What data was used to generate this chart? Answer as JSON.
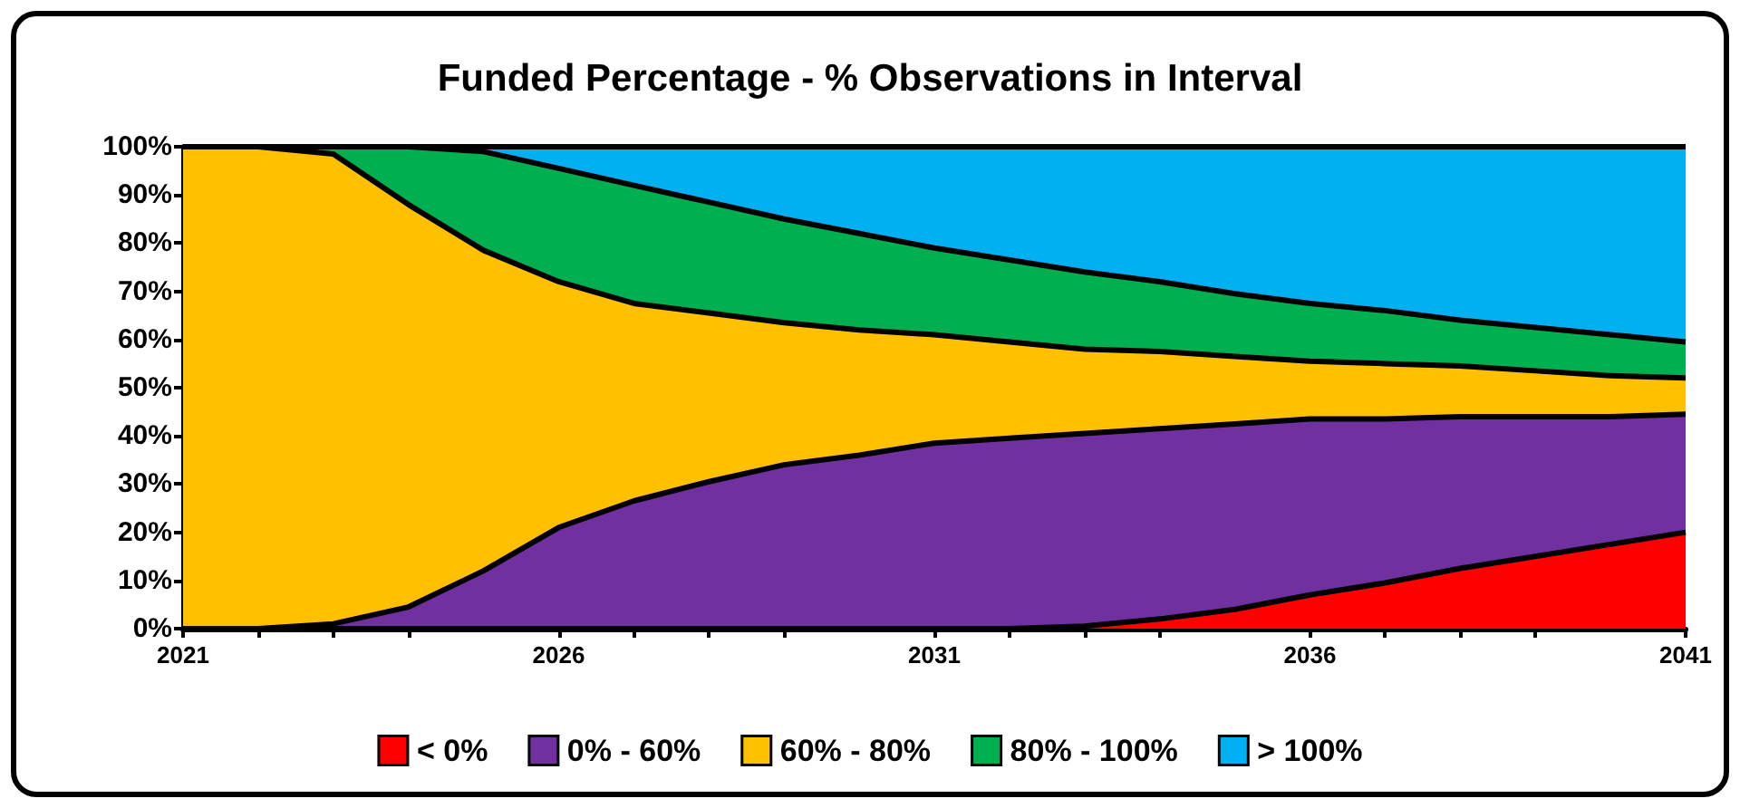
{
  "chart_data": {
    "type": "area",
    "title": "Funded Percentage - % Observations in Interval",
    "stacked": true,
    "x": [
      2021,
      2022,
      2023,
      2024,
      2025,
      2026,
      2027,
      2028,
      2029,
      2030,
      2031,
      2032,
      2033,
      2034,
      2035,
      2036,
      2037,
      2038,
      2039,
      2040,
      2041
    ],
    "series": [
      {
        "name": "< 0%",
        "color": "#ff0000",
        "values": [
          0,
          0,
          0,
          0,
          0,
          0,
          0,
          0,
          0,
          0,
          0,
          0,
          0.5,
          2,
          4,
          7,
          9.5,
          12.5,
          15,
          17.5,
          20
        ]
      },
      {
        "name": "0% - 60%",
        "color": "#7030a0",
        "values": [
          0,
          0,
          1,
          4.5,
          12,
          21,
          26.5,
          30.5,
          34,
          36,
          38.5,
          39.5,
          40,
          39.5,
          38.5,
          36.5,
          34,
          31.5,
          29,
          26.5,
          24.5
        ]
      },
      {
        "name": "60% - 80%",
        "color": "#ffc000",
        "values": [
          100,
          100,
          97.5,
          83.5,
          66.5,
          51,
          41,
          35,
          29.5,
          26,
          22.5,
          20,
          17.5,
          16,
          14,
          12,
          11.5,
          10.5,
          9.5,
          8.5,
          7.5
        ]
      },
      {
        "name": "80% - 100%",
        "color": "#00b050",
        "values": [
          0,
          0,
          1.5,
          12,
          20.5,
          23.5,
          24.5,
          23,
          21.5,
          20,
          18,
          17,
          16,
          14.5,
          13,
          12,
          11,
          9.5,
          9,
          8.5,
          7.5
        ]
      },
      {
        "name": "> 100%",
        "color": "#00b0f0",
        "values": [
          0,
          0,
          0,
          0,
          1,
          4.5,
          8,
          11.5,
          15,
          18,
          21,
          23.5,
          26,
          28,
          30.5,
          32.5,
          34,
          36,
          37.5,
          39,
          40.5
        ]
      }
    ],
    "xlim": [
      2021,
      2041
    ],
    "xticks": [
      2021,
      2026,
      2031,
      2036,
      2041
    ],
    "ylim": [
      0,
      100
    ],
    "yticks": [
      {
        "value": 0,
        "label": "0%"
      },
      {
        "value": 10,
        "label": "10%"
      },
      {
        "value": 20,
        "label": "20%"
      },
      {
        "value": 30,
        "label": "30%"
      },
      {
        "value": 40,
        "label": "40%"
      },
      {
        "value": 50,
        "label": "50%"
      },
      {
        "value": 60,
        "label": "60%"
      },
      {
        "value": 70,
        "label": "70%"
      },
      {
        "value": 80,
        "label": "80%"
      },
      {
        "value": 90,
        "label": "90%"
      },
      {
        "value": 100,
        "label": "100%"
      }
    ],
    "grid": false,
    "legend": "bottom",
    "marker": "none"
  }
}
